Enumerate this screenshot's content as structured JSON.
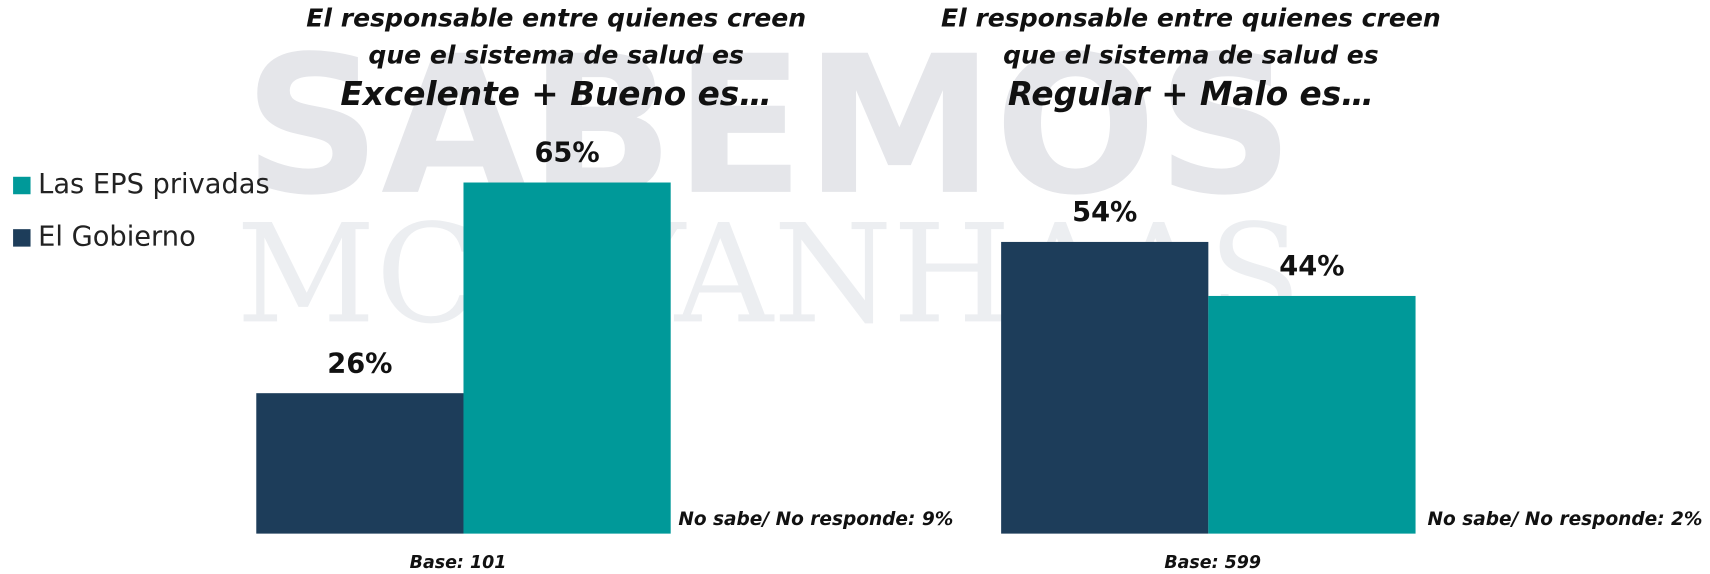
{
  "watermark": {
    "line1": "SABEMOS",
    "line2": "MCP-YANHAAS"
  },
  "chart_data": [
    {
      "type": "bar",
      "title": [
        "El responsable entre quienes creen",
        "que el sistema de salud es"
      ],
      "subtitle": "Excelente + Bueno es…",
      "series": [
        {
          "name": "El Gobierno",
          "color": "#1d3d5a",
          "values": [
            26
          ],
          "value_labels": [
            "26%"
          ]
        },
        {
          "name": "Las EPS privadas",
          "color": "#009999",
          "values": [
            65
          ],
          "value_labels": [
            "65%"
          ]
        }
      ],
      "annotations": [
        "No sabe/ No responde: 9%",
        "Base: 101"
      ]
    },
    {
      "type": "bar",
      "title": [
        "El responsable entre quienes creen",
        "que el sistema de salud es"
      ],
      "subtitle": "Regular + Malo es…",
      "series": [
        {
          "color": "#1d3d5a",
          "values": [
            54
          ],
          "value_labels": [
            "54%"
          ]
        },
        {
          "color": "#009999",
          "values": [
            44
          ],
          "value_labels": [
            "44%"
          ]
        }
      ],
      "annotations": [
        "No sabe/ No responde: 2%",
        "Base: 599"
      ]
    }
  ]
}
